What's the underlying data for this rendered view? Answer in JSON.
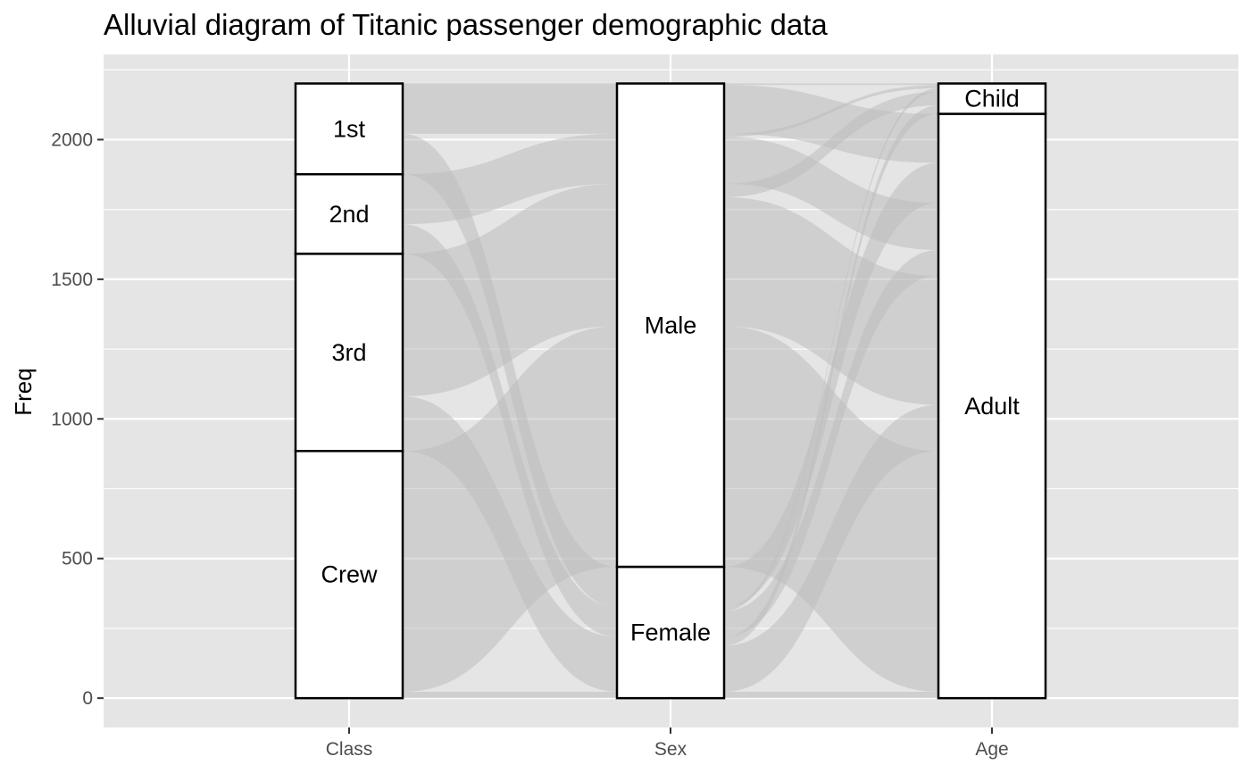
{
  "chart_data": {
    "type": "alluvial",
    "title": "Alluvial diagram of Titanic passenger demographic data",
    "ylabel": "Freq",
    "xlabel": "",
    "ylim": [
      -105,
      2305
    ],
    "y_ticks": [
      0,
      500,
      1000,
      1500,
      2000
    ],
    "y_tick_labels": [
      "0",
      "500",
      "1000",
      "1500",
      "2000"
    ],
    "axes": [
      "Class",
      "Sex",
      "Age"
    ],
    "strata": {
      "Class": [
        {
          "label": "1st",
          "value": 325
        },
        {
          "label": "2nd",
          "value": 285
        },
        {
          "label": "3rd",
          "value": 706
        },
        {
          "label": "Crew",
          "value": 885
        }
      ],
      "Sex": [
        {
          "label": "Male",
          "value": 1731
        },
        {
          "label": "Female",
          "value": 470
        }
      ],
      "Age": [
        {
          "label": "Child",
          "value": 109
        },
        {
          "label": "Adult",
          "value": 2092
        }
      ]
    },
    "flows": [
      {
        "Class": "1st",
        "Sex": "Male",
        "Age": "Child",
        "value": 5
      },
      {
        "Class": "1st",
        "Sex": "Male",
        "Age": "Adult",
        "value": 175
      },
      {
        "Class": "1st",
        "Sex": "Female",
        "Age": "Child",
        "value": 1
      },
      {
        "Class": "1st",
        "Sex": "Female",
        "Age": "Adult",
        "value": 144
      },
      {
        "Class": "2nd",
        "Sex": "Male",
        "Age": "Child",
        "value": 11
      },
      {
        "Class": "2nd",
        "Sex": "Male",
        "Age": "Adult",
        "value": 168
      },
      {
        "Class": "2nd",
        "Sex": "Female",
        "Age": "Child",
        "value": 13
      },
      {
        "Class": "2nd",
        "Sex": "Female",
        "Age": "Adult",
        "value": 93
      },
      {
        "Class": "3rd",
        "Sex": "Male",
        "Age": "Child",
        "value": 48
      },
      {
        "Class": "3rd",
        "Sex": "Male",
        "Age": "Adult",
        "value": 462
      },
      {
        "Class": "3rd",
        "Sex": "Female",
        "Age": "Child",
        "value": 31
      },
      {
        "Class": "3rd",
        "Sex": "Female",
        "Age": "Adult",
        "value": 165
      },
      {
        "Class": "Crew",
        "Sex": "Male",
        "Age": "Adult",
        "value": 862
      },
      {
        "Class": "Crew",
        "Sex": "Female",
        "Age": "Adult",
        "value": 23
      }
    ],
    "grid": true,
    "legend": "none",
    "colors": {
      "panel": "#e5e5e5",
      "grid": "#ffffff",
      "flow": "#bdbdbd",
      "stratum_fill": "#ffffff",
      "stratum_stroke": "#000000"
    }
  }
}
